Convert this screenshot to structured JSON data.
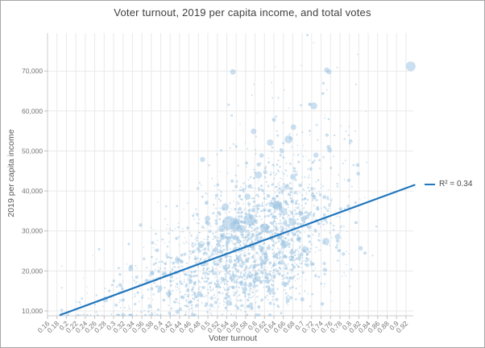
{
  "title": "Voter turnout, 2019 per capita income, and total votes",
  "legend": {
    "label": "R² = 0.34"
  },
  "colors": {
    "point_fill": "#9fc5e2",
    "trend_blue": "#2176bd",
    "grid": "#e9e9e9",
    "axis_line": "#cccccc",
    "tick_mark": "#c0c0c0",
    "tick_label": "#767676",
    "axis_title": "#5a5a5a",
    "title_text": "#3f3f3f",
    "frame_border": "#a6a6a6"
  },
  "chart_data": {
    "type": "scatter",
    "title": "Voter turnout, 2019 per capita income, and total votes",
    "xlabel": "Voter turnout",
    "ylabel": "2019 per capita income",
    "size_encoding": "total votes",
    "grid": true,
    "legend_position": "right-middle",
    "xlim": [
      0.16,
      0.9355
    ],
    "ylim": [
      8791,
      79500
    ],
    "x_ticks": [
      0.16,
      0.18,
      0.2,
      0.22,
      0.24,
      0.26,
      0.28,
      0.3,
      0.32,
      0.34,
      0.36,
      0.38,
      0.4,
      0.42,
      0.44,
      0.46,
      0.48,
      0.5,
      0.52,
      0.54,
      0.56,
      0.58,
      0.6,
      0.62,
      0.64,
      0.66,
      0.68,
      0.7,
      0.72,
      0.74,
      0.76,
      0.78,
      0.8,
      0.82,
      0.84,
      0.86,
      0.88,
      0.9,
      0.92
    ],
    "x_tick_labels": [
      "0.16",
      "0.18",
      "0.2",
      "0.22",
      "0.24",
      "0.26",
      "0.28",
      "0.3",
      "0.32",
      "0.34",
      "0.36",
      "0.38",
      "0.4",
      "0.42",
      "0.44",
      "0.46",
      "0.48",
      "0.5",
      "0.52",
      "0.54",
      "0.56",
      "0.58",
      "0.6",
      "0.62",
      "0.64",
      "0.66",
      "0.68",
      "0.7",
      "0.72",
      "0.74",
      "0.76",
      "0.78",
      "0.8",
      "0.82",
      "0.84",
      "0.86",
      "0.88",
      "0.9",
      "0.92"
    ],
    "y_ticks": [
      10000,
      20000,
      30000,
      40000,
      50000,
      60000,
      70000
    ],
    "y_tick_labels": [
      "10,000",
      "20,000",
      "30,000",
      "40,000",
      "50,000",
      "60,000",
      "70,000"
    ],
    "trendline": {
      "x": [
        0.187,
        0.938
      ],
      "y": [
        9000,
        41500
      ],
      "r_squared": 0.34,
      "label": "R² = 0.34",
      "color": "#2176bd",
      "width": 2.2
    },
    "point_color": "#9fc5e2",
    "point_opacity": 0.55,
    "cloud": {
      "description": "Dense positively-correlated bubble cloud; turnout mostly 0.45-0.75, income mostly 12k-38k, sparse tail up to ~79k; bubble size = total votes",
      "count": 2300,
      "seed": 42,
      "mix_weight": 0.78,
      "x_mean1": 0.615,
      "x_sd1": 0.085,
      "x_mean2": 0.46,
      "x_sd2": 0.11,
      "x_min": 0.19,
      "x_max": 0.93,
      "slope": 43280,
      "intercept": 905,
      "noise_sd_up": 0.3,
      "noise_sd_down": 0.42,
      "y_min": 9000,
      "y_max": 78800,
      "r_base": 0.7,
      "r_exp_mean": 0.55,
      "r_max": 6
    },
    "highlight_bubbles": [
      {
        "x": 0.545,
        "y": 32000,
        "r": 8.5
      },
      {
        "x": 0.558,
        "y": 31200,
        "r": 6.5
      },
      {
        "x": 0.588,
        "y": 32800,
        "r": 7.0
      },
      {
        "x": 0.571,
        "y": 30500,
        "r": 5.0
      },
      {
        "x": 0.62,
        "y": 30800,
        "r": 5.5
      },
      {
        "x": 0.645,
        "y": 36500,
        "r": 5.0
      },
      {
        "x": 0.537,
        "y": 36000,
        "r": 4.5
      },
      {
        "x": 0.499,
        "y": 33100,
        "r": 3.5
      },
      {
        "x": 0.607,
        "y": 44000,
        "r": 4.5
      },
      {
        "x": 0.671,
        "y": 52900,
        "r": 5.0
      },
      {
        "x": 0.632,
        "y": 52100,
        "r": 4.0
      },
      {
        "x": 0.597,
        "y": 54900,
        "r": 3.5
      },
      {
        "x": 0.758,
        "y": 50200,
        "r": 3.0
      },
      {
        "x": 0.553,
        "y": 69800,
        "r": 3.5
      },
      {
        "x": 0.757,
        "y": 69800,
        "r": 3.0
      },
      {
        "x": 0.64,
        "y": 57800,
        "r": 2.5
      },
      {
        "x": 0.711,
        "y": 79000,
        "r": 1.5
      }
    ]
  }
}
